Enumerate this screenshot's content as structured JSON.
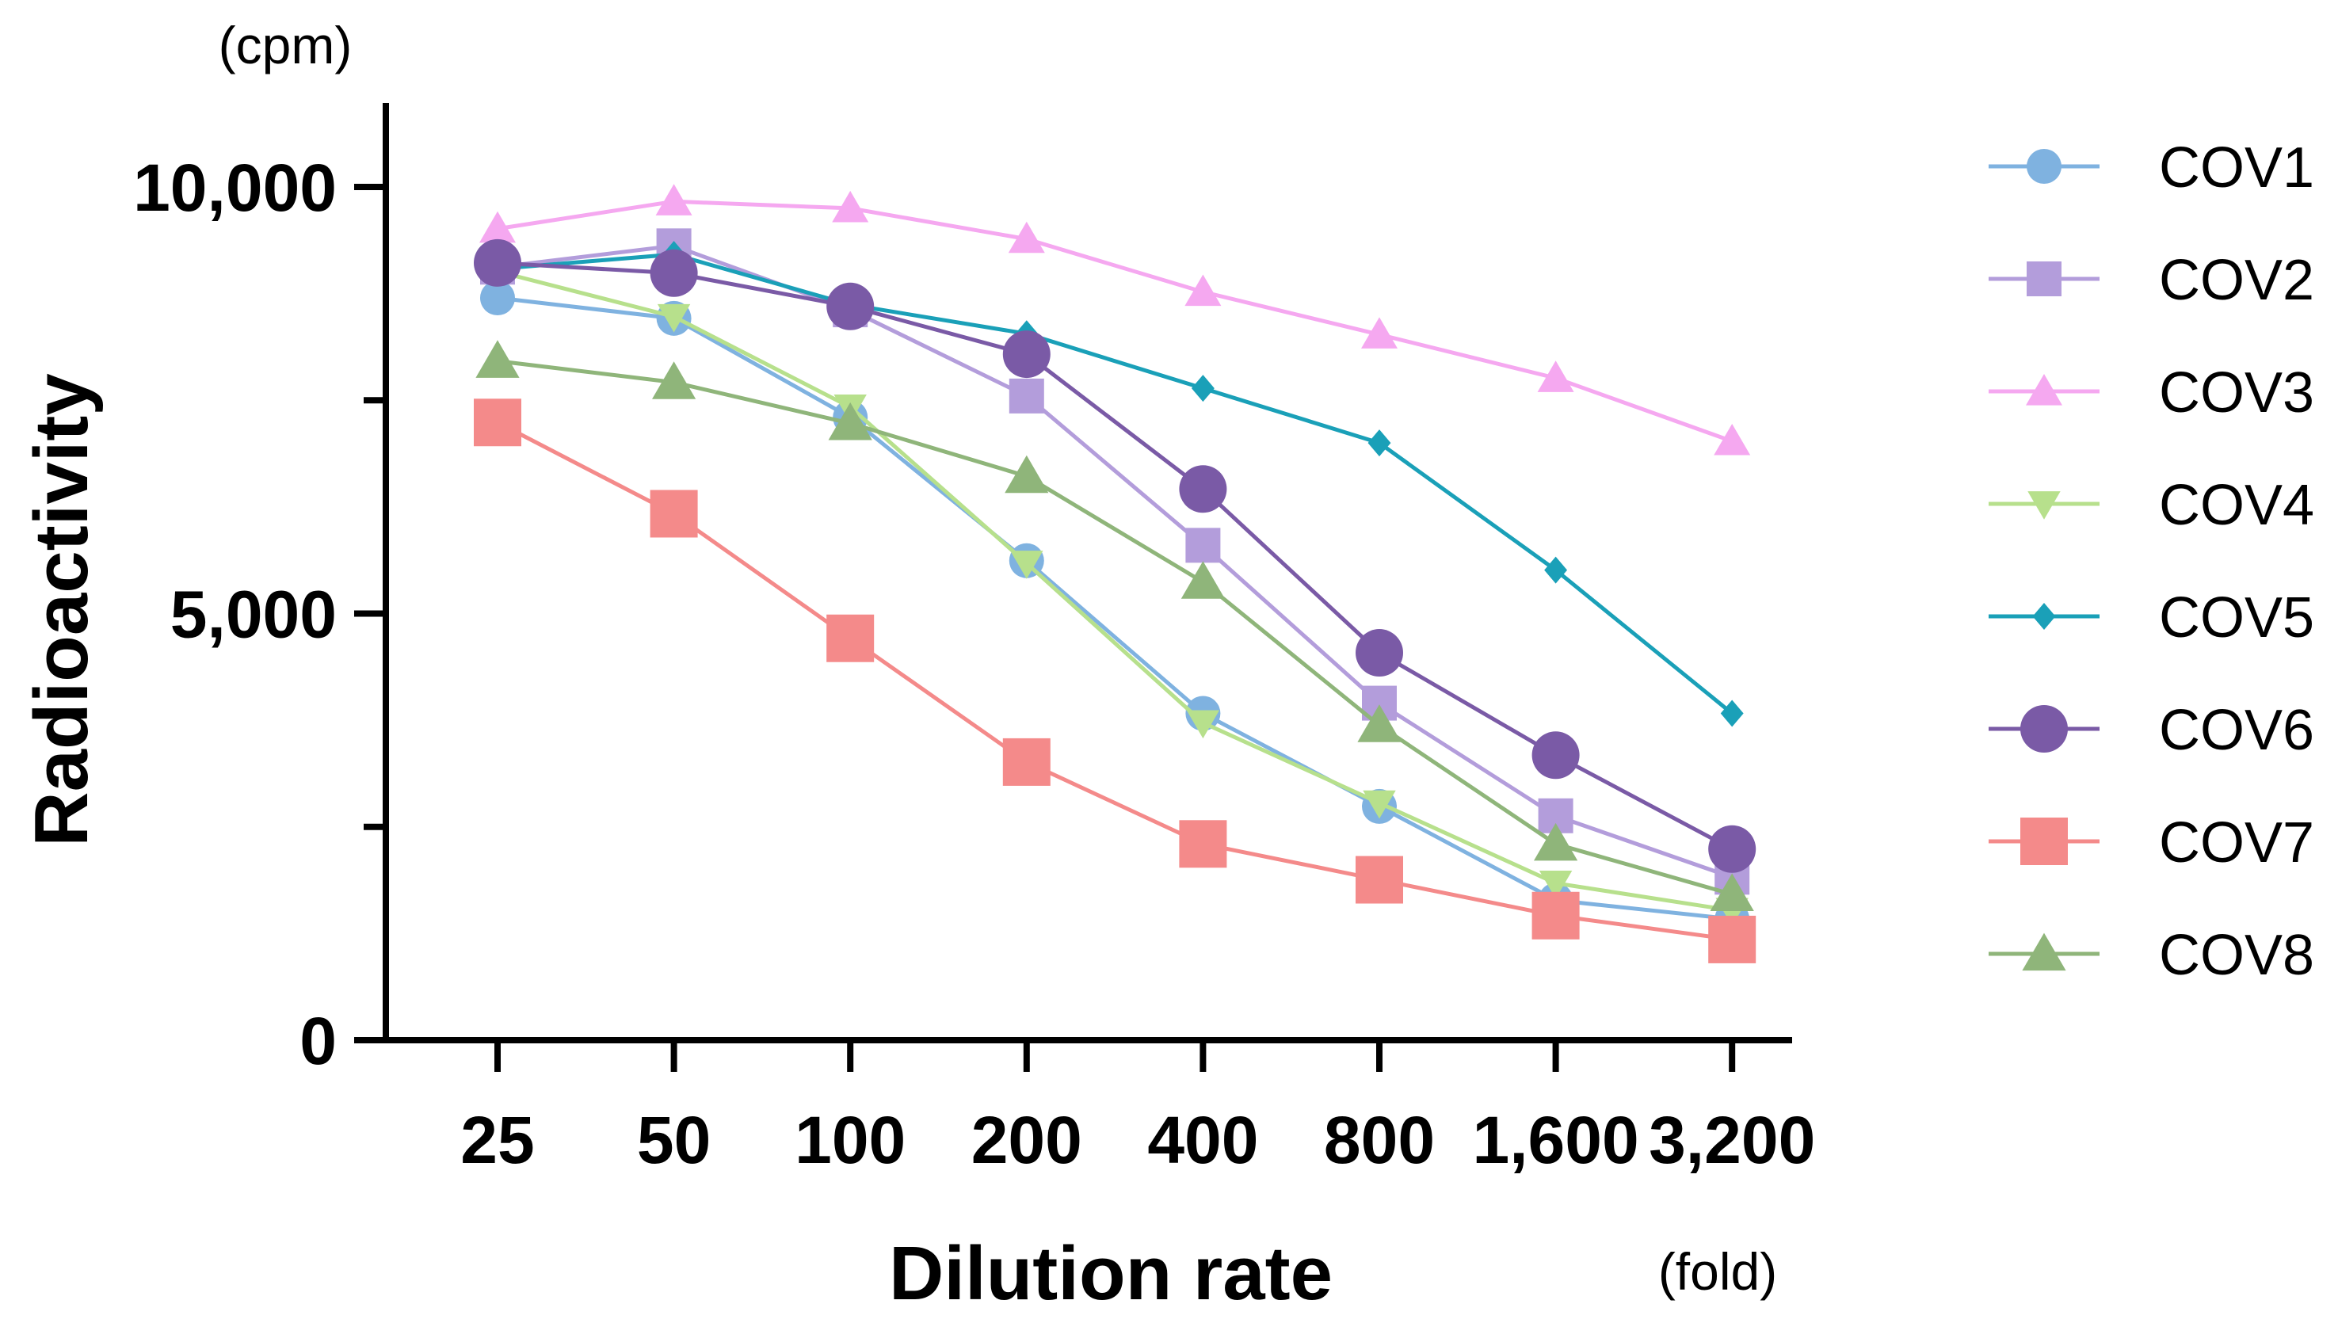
{
  "chart_data": {
    "type": "line",
    "title": "",
    "xlabel": "Dilution rate",
    "x_unit": "(fold)",
    "ylabel": "Radioactivity",
    "y_unit": "(cpm)",
    "categories": [
      "25",
      "50",
      "100",
      "200",
      "400",
      "800",
      "1,600",
      "3,200"
    ],
    "ylim": [
      0,
      11000
    ],
    "yticks": [
      {
        "value": 0,
        "label": "0"
      },
      {
        "value": 2500,
        "label": ""
      },
      {
        "value": 5000,
        "label": "5,000"
      },
      {
        "value": 7500,
        "label": ""
      },
      {
        "value": 10000,
        "label": "10,000"
      }
    ],
    "grid": false,
    "legend_position": "right",
    "series": [
      {
        "name": "COV1",
        "color": "#7fb2e0",
        "marker": "circle",
        "values": [
          8700,
          8460,
          7300,
          5620,
          3830,
          2740,
          1640,
          1420
        ]
      },
      {
        "name": "COV2",
        "color": "#b39ddb",
        "marker": "square",
        "values": [
          9060,
          9310,
          8560,
          7550,
          5800,
          3950,
          2630,
          1910
        ]
      },
      {
        "name": "COV3",
        "color": "#f5a8f0",
        "marker": "triangle-up",
        "values": [
          9510,
          9830,
          9750,
          9390,
          8770,
          8270,
          7760,
          7020
        ]
      },
      {
        "name": "COV4",
        "color": "#b7e08c",
        "marker": "triangle-down",
        "values": [
          9010,
          8480,
          7420,
          5590,
          3720,
          2780,
          1840,
          1520
        ]
      },
      {
        "name": "COV5",
        "color": "#1aa0b8",
        "marker": "diamond",
        "values": [
          9040,
          9210,
          8620,
          8280,
          7640,
          7000,
          5510,
          3830
        ]
      },
      {
        "name": "COV6",
        "color": "#7a5aa6",
        "marker": "circle",
        "values": [
          9110,
          8990,
          8600,
          8040,
          6460,
          4540,
          3340,
          2240
        ]
      },
      {
        "name": "COV7",
        "color": "#f48a8a",
        "marker": "square",
        "values": [
          7240,
          6170,
          4710,
          3260,
          2300,
          1880,
          1460,
          1180
        ]
      },
      {
        "name": "COV8",
        "color": "#8fb57a",
        "marker": "triangle-up",
        "values": [
          7960,
          7710,
          7230,
          6610,
          5370,
          3690,
          2300,
          1710
        ]
      }
    ]
  }
}
